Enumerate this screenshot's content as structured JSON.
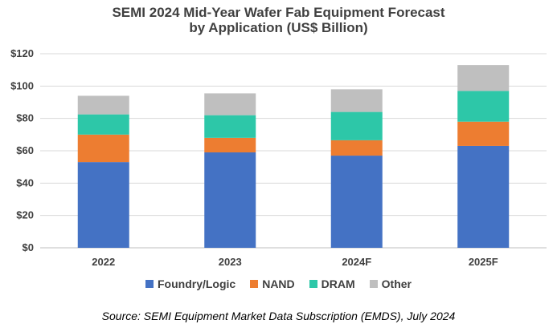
{
  "chart_data": {
    "type": "bar",
    "stacked": true,
    "title_line1": "SEMI 2024 Mid-Year Wafer Fab Equipment Forecast",
    "title_line2": "by Application (US$ Billion)",
    "categories": [
      "2022",
      "2023",
      "2024F",
      "2025F"
    ],
    "series": [
      {
        "name": "Foundry/Logic",
        "color": "#4472C4",
        "values": [
          53,
          59,
          57,
          63
        ]
      },
      {
        "name": "NAND",
        "color": "#ED7D31",
        "values": [
          17,
          9,
          9.5,
          15
        ]
      },
      {
        "name": "DRAM",
        "color": "#2DC7A8",
        "values": [
          12.5,
          14,
          17.5,
          19
        ]
      },
      {
        "name": "Other",
        "color": "#BFBFBF",
        "values": [
          11.5,
          13.5,
          14,
          16
        ]
      }
    ],
    "ylim": [
      0,
      120
    ],
    "yticks": [
      0,
      20,
      40,
      60,
      80,
      100,
      120
    ],
    "ytick_labels": [
      "$0",
      "$20",
      "$40",
      "$60",
      "$80",
      "$100",
      "$120"
    ],
    "grid": true,
    "legend_position": "bottom",
    "xlabel": "",
    "ylabel": ""
  },
  "source": "Source: SEMI Equipment Market Data Subscription (EMDS), July 2024"
}
